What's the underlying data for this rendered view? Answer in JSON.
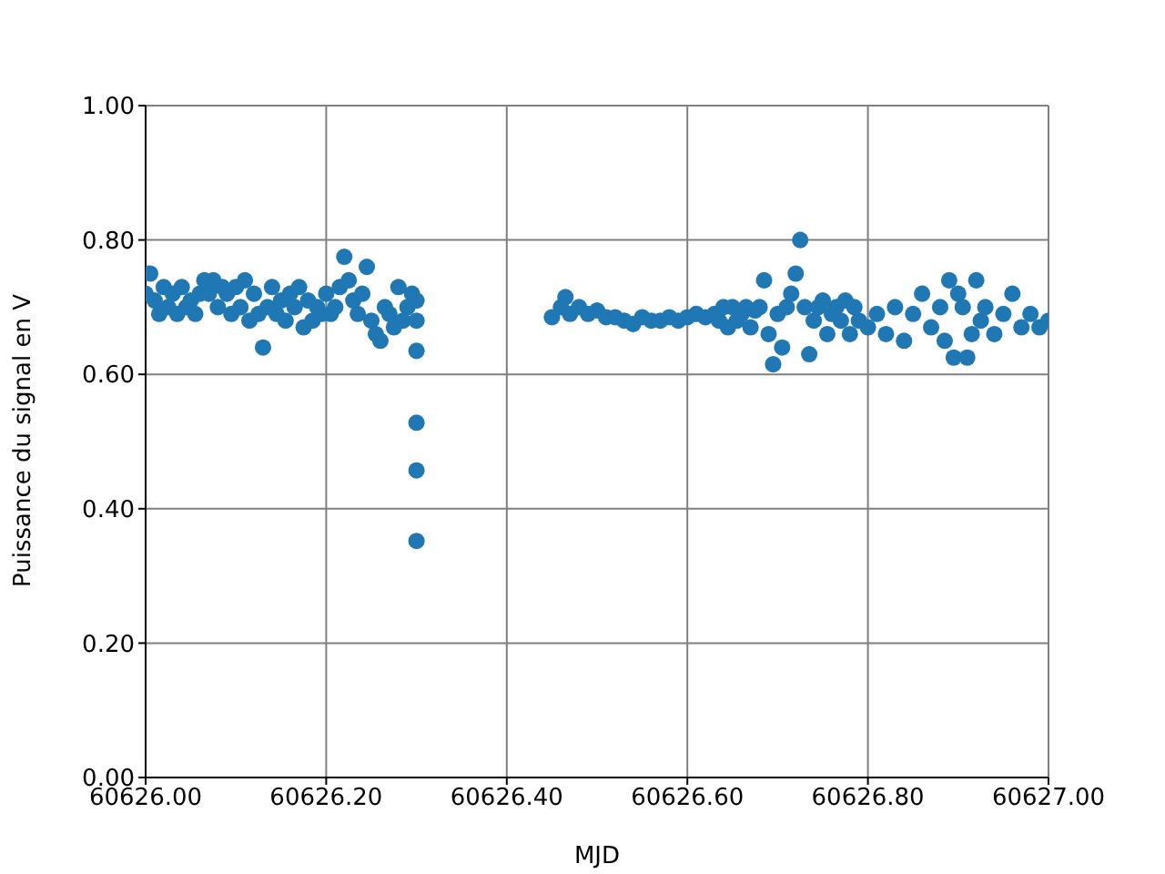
{
  "chart_data": {
    "type": "scatter",
    "xlabel": "MJD",
    "ylabel": "Puissance du signal en V",
    "xlim": [
      60626.0,
      60627.0
    ],
    "xticks": [
      {
        "value": 60626.0,
        "label": "60626.00"
      },
      {
        "value": 60626.2,
        "label": "60626.20"
      },
      {
        "value": 60626.4,
        "label": "60626.40"
      },
      {
        "value": 60626.6,
        "label": "60626.60"
      },
      {
        "value": 60626.8,
        "label": "60626.80"
      },
      {
        "value": 60627.0,
        "label": "60627.00"
      }
    ],
    "ylim": [
      0.0,
      1.0
    ],
    "yticks": [
      {
        "value": 0.0,
        "label": "0.00"
      },
      {
        "value": 0.2,
        "label": "0.20"
      },
      {
        "value": 0.4,
        "label": "0.40"
      },
      {
        "value": 0.6,
        "label": "0.60"
      },
      {
        "value": 0.8,
        "label": "0.80"
      },
      {
        "value": 1.0,
        "label": "1.00"
      }
    ],
    "grid": true,
    "marker": "circle",
    "series": [
      {
        "color": "#1f77b4",
        "x": [
          60626.0,
          60626.005,
          60626.01,
          60626.015,
          60626.02,
          60626.025,
          60626.03,
          60626.035,
          60626.04,
          60626.045,
          60626.05,
          60626.055,
          60626.06,
          60626.065,
          60626.07,
          60626.075,
          60626.08,
          60626.085,
          60626.09,
          60626.095,
          60626.1,
          60626.105,
          60626.11,
          60626.115,
          60626.12,
          60626.125,
          60626.13,
          60626.135,
          60626.14,
          60626.145,
          60626.15,
          60626.155,
          60626.16,
          60626.165,
          60626.17,
          60626.175,
          60626.18,
          60626.185,
          60626.19,
          60626.195,
          60626.2,
          60626.205,
          60626.21,
          60626.215,
          60626.22,
          60626.225,
          60626.23,
          60626.235,
          60626.24,
          60626.245,
          60626.25,
          60626.255,
          60626.26,
          60626.265,
          60626.27,
          60626.275,
          60626.28,
          60626.285,
          60626.29,
          60626.295,
          60626.3,
          60626.3,
          60626.3,
          60626.3,
          60626.3,
          60626.3,
          60626.45,
          60626.46,
          60626.465,
          60626.47,
          60626.48,
          60626.49,
          60626.5,
          60626.51,
          60626.52,
          60626.53,
          60626.54,
          60626.55,
          60626.56,
          60626.57,
          60626.58,
          60626.59,
          60626.6,
          60626.61,
          60626.62,
          60626.63,
          60626.635,
          60626.64,
          60626.645,
          60626.65,
          60626.655,
          60626.66,
          60626.665,
          60626.67,
          60626.675,
          60626.68,
          60626.685,
          60626.69,
          60626.695,
          60626.7,
          60626.705,
          60626.71,
          60626.715,
          60626.72,
          60626.725,
          60626.73,
          60626.735,
          60626.74,
          60626.745,
          60626.75,
          60626.755,
          60626.76,
          60626.765,
          60626.77,
          60626.775,
          60626.78,
          60626.785,
          60626.79,
          60626.8,
          60626.81,
          60626.82,
          60626.83,
          60626.84,
          60626.85,
          60626.86,
          60626.87,
          60626.88,
          60626.885,
          60626.89,
          60626.895,
          60626.9,
          60626.905,
          60626.91,
          60626.915,
          60626.92,
          60626.925,
          60626.93,
          60626.94,
          60626.95,
          60626.96,
          60626.97,
          60626.98,
          60626.99,
          60627.0
        ],
        "values": [
          0.72,
          0.75,
          0.71,
          0.69,
          0.73,
          0.7,
          0.72,
          0.69,
          0.73,
          0.7,
          0.71,
          0.69,
          0.72,
          0.74,
          0.72,
          0.74,
          0.7,
          0.73,
          0.72,
          0.69,
          0.73,
          0.7,
          0.74,
          0.68,
          0.72,
          0.69,
          0.64,
          0.7,
          0.73,
          0.69,
          0.71,
          0.68,
          0.72,
          0.7,
          0.73,
          0.67,
          0.71,
          0.68,
          0.7,
          0.69,
          0.72,
          0.69,
          0.7,
          0.73,
          0.775,
          0.74,
          0.71,
          0.69,
          0.72,
          0.76,
          0.68,
          0.66,
          0.65,
          0.7,
          0.69,
          0.67,
          0.73,
          0.68,
          0.7,
          0.72,
          0.71,
          0.68,
          0.635,
          0.528,
          0.457,
          0.352,
          0.685,
          0.7,
          0.715,
          0.69,
          0.7,
          0.69,
          0.695,
          0.685,
          0.685,
          0.68,
          0.675,
          0.685,
          0.68,
          0.68,
          0.685,
          0.68,
          0.685,
          0.69,
          0.685,
          0.69,
          0.68,
          0.7,
          0.67,
          0.7,
          0.68,
          0.69,
          0.7,
          0.67,
          0.695,
          0.7,
          0.74,
          0.66,
          0.615,
          0.69,
          0.64,
          0.7,
          0.72,
          0.75,
          0.8,
          0.7,
          0.63,
          0.68,
          0.7,
          0.71,
          0.66,
          0.69,
          0.7,
          0.68,
          0.71,
          0.66,
          0.7,
          0.68,
          0.67,
          0.69,
          0.66,
          0.7,
          0.65,
          0.69,
          0.72,
          0.67,
          0.7,
          0.65,
          0.74,
          0.625,
          0.72,
          0.7,
          0.625,
          0.66,
          0.74,
          0.68,
          0.7,
          0.66,
          0.69,
          0.72,
          0.67,
          0.69,
          0.67,
          0.68
        ]
      }
    ]
  }
}
